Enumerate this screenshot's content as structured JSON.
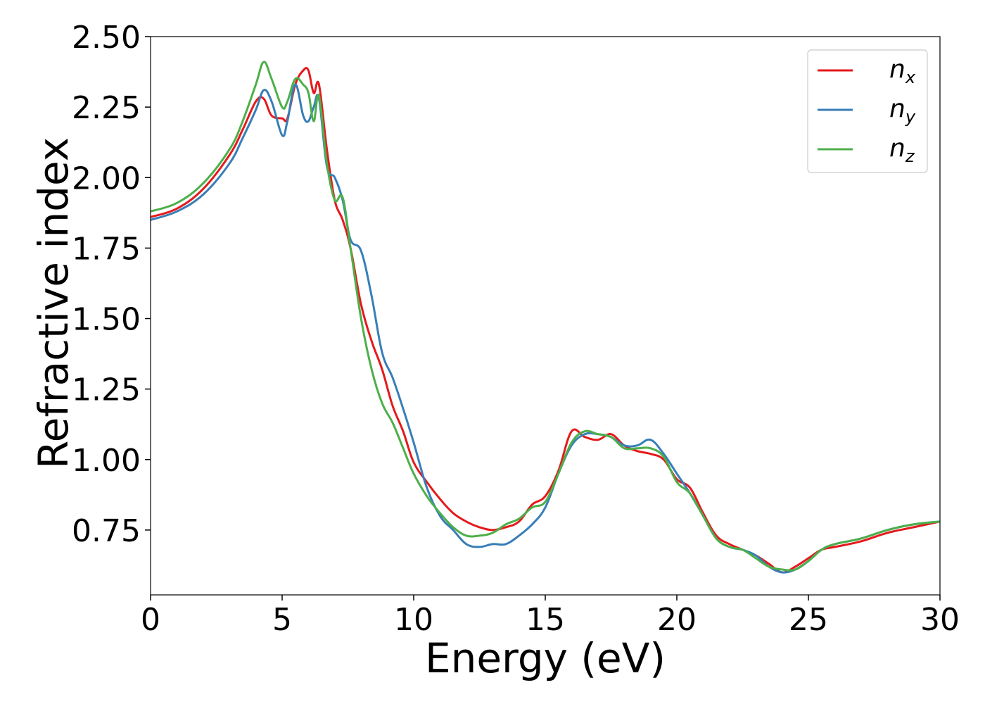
{
  "chart_data": {
    "type": "line",
    "xlabel": "Energy (eV)",
    "ylabel": "Refractive index",
    "xlim": [
      0,
      30
    ],
    "ylim": [
      0.52,
      2.5
    ],
    "xticks": [
      0,
      5,
      10,
      15,
      20,
      25,
      30
    ],
    "xtick_labels": [
      "0",
      "5",
      "10",
      "15",
      "20",
      "25",
      "30"
    ],
    "yticks": [
      0.75,
      1.0,
      1.25,
      1.5,
      1.75,
      2.0,
      2.25,
      2.5
    ],
    "ytick_labels": [
      "0.75",
      "1.00",
      "1.25",
      "1.50",
      "1.75",
      "2.00",
      "2.25",
      "2.50"
    ],
    "grid": false,
    "legend_position": "top-right",
    "x": [
      0,
      1,
      2,
      3,
      3.5,
      4,
      4.3,
      4.6,
      5,
      5.2,
      5.5,
      5.8,
      6,
      6.2,
      6.4,
      6.7,
      7,
      7.3,
      7.6,
      8,
      8.4,
      8.8,
      9.2,
      9.6,
      10,
      10.5,
      11,
      11.5,
      12,
      12.5,
      13,
      13.5,
      14,
      14.5,
      15,
      15.5,
      16,
      16.5,
      17,
      17.5,
      18,
      18.5,
      19,
      19.5,
      20,
      20.5,
      21,
      21.5,
      22,
      22.5,
      23,
      23.5,
      24,
      24.5,
      25,
      25.5,
      26,
      27,
      28,
      29,
      30
    ],
    "series": [
      {
        "name": "n",
        "subscript": "x",
        "color": "#e41a1c",
        "values": [
          1.86,
          1.89,
          1.96,
          2.08,
          2.17,
          2.27,
          2.28,
          2.22,
          2.21,
          2.21,
          2.33,
          2.38,
          2.38,
          2.3,
          2.33,
          2.1,
          1.92,
          1.85,
          1.75,
          1.55,
          1.42,
          1.32,
          1.19,
          1.1,
          0.99,
          0.92,
          0.86,
          0.81,
          0.78,
          0.76,
          0.75,
          0.76,
          0.78,
          0.84,
          0.87,
          0.96,
          1.1,
          1.08,
          1.07,
          1.09,
          1.05,
          1.03,
          1.02,
          1.0,
          0.93,
          0.9,
          0.81,
          0.73,
          0.7,
          0.68,
          0.66,
          0.63,
          0.6,
          0.62,
          0.65,
          0.68,
          0.69,
          0.71,
          0.74,
          0.76,
          0.78
        ]
      },
      {
        "name": "n",
        "subscript": "y",
        "color": "#377eb8",
        "values": [
          1.85,
          1.88,
          1.94,
          2.05,
          2.14,
          2.24,
          2.31,
          2.27,
          2.15,
          2.2,
          2.33,
          2.22,
          2.2,
          2.25,
          2.28,
          2.04,
          2.0,
          1.92,
          1.78,
          1.74,
          1.58,
          1.38,
          1.29,
          1.18,
          1.06,
          0.9,
          0.8,
          0.75,
          0.7,
          0.69,
          0.7,
          0.7,
          0.73,
          0.77,
          0.83,
          0.95,
          1.05,
          1.09,
          1.09,
          1.08,
          1.05,
          1.05,
          1.07,
          1.02,
          0.95,
          0.88,
          0.8,
          0.72,
          0.69,
          0.68,
          0.66,
          0.62,
          0.6,
          0.61,
          0.64,
          0.68,
          0.7,
          0.72,
          0.75,
          0.77,
          0.78
        ]
      },
      {
        "name": "n",
        "subscript": "z",
        "color": "#4daf4a",
        "values": [
          1.88,
          1.91,
          1.98,
          2.1,
          2.2,
          2.33,
          2.41,
          2.35,
          2.25,
          2.27,
          2.35,
          2.33,
          2.3,
          2.2,
          2.29,
          2.05,
          1.92,
          1.93,
          1.75,
          1.5,
          1.32,
          1.2,
          1.13,
          1.04,
          0.95,
          0.87,
          0.81,
          0.76,
          0.73,
          0.73,
          0.74,
          0.77,
          0.79,
          0.83,
          0.85,
          0.95,
          1.06,
          1.1,
          1.09,
          1.08,
          1.04,
          1.04,
          1.04,
          1.01,
          0.92,
          0.88,
          0.8,
          0.72,
          0.69,
          0.68,
          0.65,
          0.62,
          0.61,
          0.61,
          0.64,
          0.68,
          0.7,
          0.72,
          0.75,
          0.77,
          0.78
        ]
      }
    ]
  }
}
